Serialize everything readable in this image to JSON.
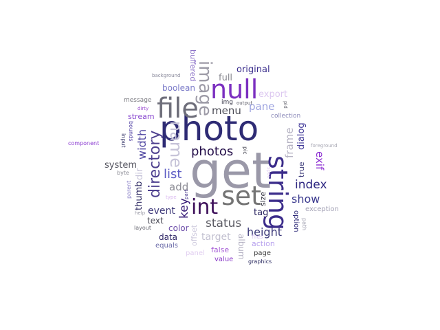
{
  "words": {
    "get": "get",
    "photo": "photo",
    "string": "string",
    "set": "set",
    "null": "null",
    "file": "file",
    "int": "int",
    "image": "image",
    "name": "name",
    "directory": "directory",
    "photos": "photos",
    "list": "list",
    "index": "index",
    "status": "status",
    "show": "show",
    "height": "height",
    "menu": "menu",
    "pane": "pane",
    "width": "width",
    "frame": "frame",
    "key": "key",
    "add": "add",
    "event": "event",
    "exif": "exif",
    "target": "target",
    "original": "original",
    "full": "full",
    "export": "export",
    "system": "system",
    "boolean": "boolean",
    "thumb": "thumb",
    "dialog": "dialog",
    "tag": "tag",
    "dir": "dir",
    "text": "text",
    "color": "color",
    "data": "data",
    "stream": "stream",
    "buffered": "buffered",
    "size": "size",
    "album": "album",
    "offset": "offset",
    "true": "true",
    "action": "action",
    "false": "false",
    "collection": "collection",
    "option": "option",
    "exception": "exception",
    "panel": "panel",
    "value": "value",
    "equals": "equals",
    "page": "page",
    "message": "message",
    "img": "img",
    "output": "output",
    "background": "background",
    "dirty": "dirty",
    "component": "component",
    "input": "input",
    "bounds": "bounds",
    "byte": "byte",
    "parent": "parent",
    "type": "type",
    "part": "part",
    "help": "help",
    "layout": "layout",
    "path": "path",
    "foreground": "foreground",
    "files": "files",
    "graphics": "graphics",
    "pic": "pic",
    "pid": "pid",
    "spec": "spec"
  }
}
